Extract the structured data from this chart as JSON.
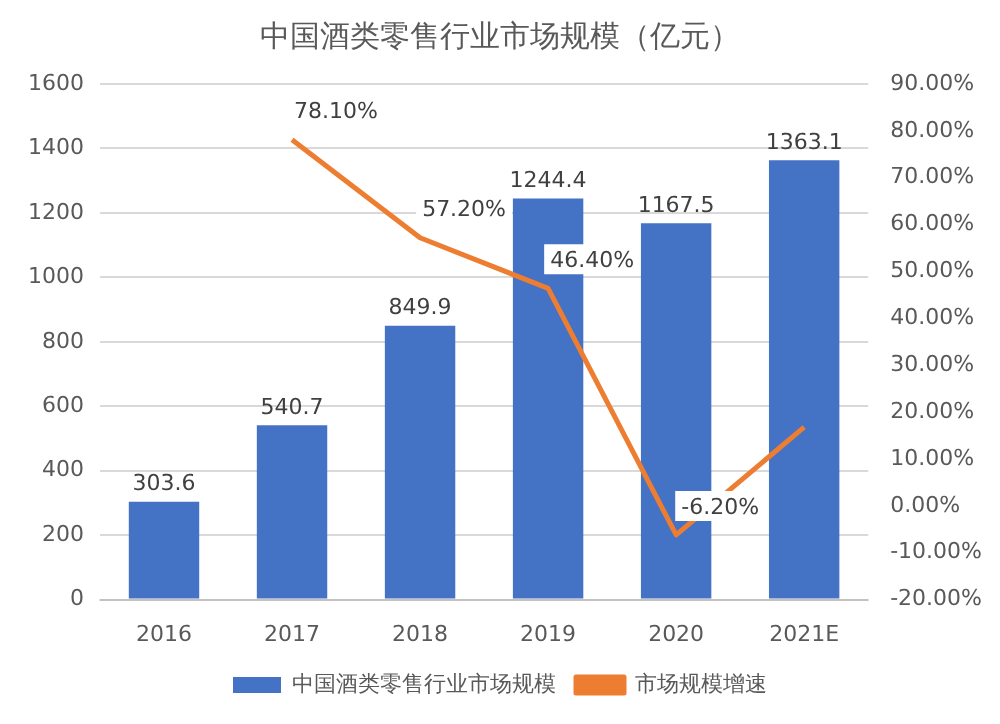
{
  "chart_data": {
    "type": "bar",
    "title": "中国酒类零售行业市场规模（亿元）",
    "categories": [
      "2016",
      "2017",
      "2018",
      "2019",
      "2020",
      "2021E"
    ],
    "series": [
      {
        "name": "中国酒类零售行业市场规模",
        "color": "#4472c4",
        "values": [
          303.6,
          540.7,
          849.9,
          1244.4,
          1167.5,
          1363.1
        ],
        "value_labels": [
          "303.6",
          "540.7",
          "849.9",
          "1244.4",
          "1167.5",
          "1363.1"
        ]
      },
      {
        "name": "市场规模增速",
        "type": "line",
        "axis": "y2",
        "color": "#ed7d31",
        "marker": "none",
        "values": [
          null,
          78.1,
          57.2,
          46.4,
          -6.2,
          16.8
        ],
        "value_labels": [
          null,
          "78.10%",
          "57.20%",
          "46.40%",
          "-6.20%",
          null
        ]
      }
    ],
    "ylim": [
      0,
      1600
    ],
    "yticks": [
      0,
      200,
      400,
      600,
      800,
      1000,
      1200,
      1400,
      1600
    ],
    "y2lim": [
      -20,
      90
    ],
    "y2ticks": [
      {
        "value": -20,
        "label": "-20.00%"
      },
      {
        "value": -10,
        "label": "-10.00%"
      },
      {
        "value": 0,
        "label": "0.00%"
      },
      {
        "value": 10,
        "label": "10.00%"
      },
      {
        "value": 20,
        "label": "20.00%"
      },
      {
        "value": 30,
        "label": "30.00%"
      },
      {
        "value": 40,
        "label": "40.00%"
      },
      {
        "value": 50,
        "label": "50.00%"
      },
      {
        "value": 60,
        "label": "60.00%"
      },
      {
        "value": 70,
        "label": "70.00%"
      },
      {
        "value": 80,
        "label": "80.00%"
      },
      {
        "value": 90,
        "label": "90.00%"
      }
    ],
    "grid": "y",
    "legend": "bottom"
  }
}
